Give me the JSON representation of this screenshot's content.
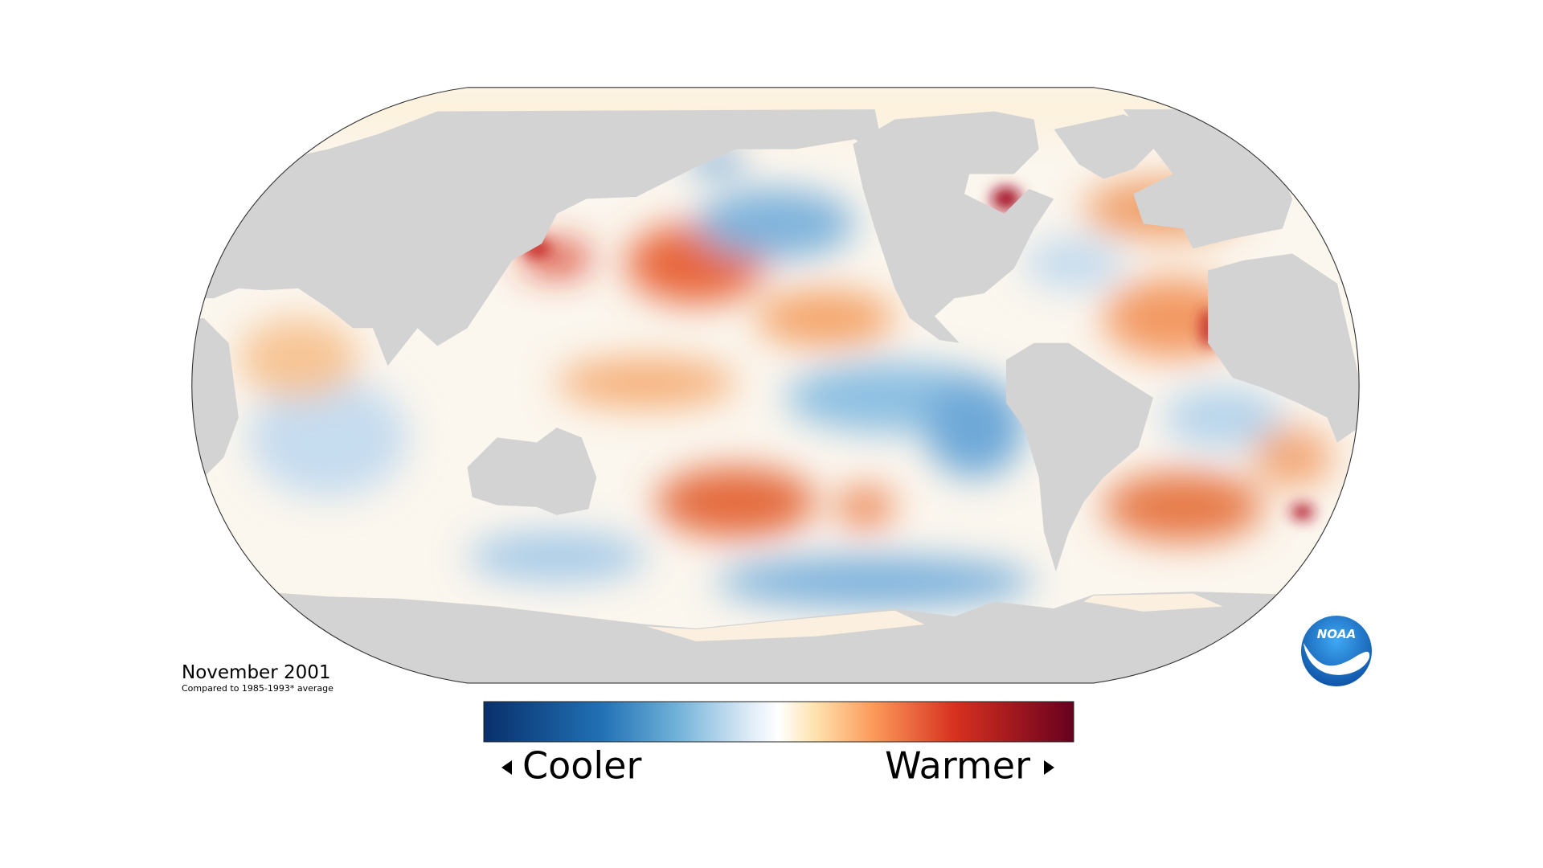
{
  "map": {
    "title": "November 2001",
    "subtitle": "Compared to 1985-1993* average"
  },
  "legend": {
    "low_label": "Cooler",
    "high_label": "Warmer"
  },
  "logo": {
    "text": "NOAA"
  }
}
